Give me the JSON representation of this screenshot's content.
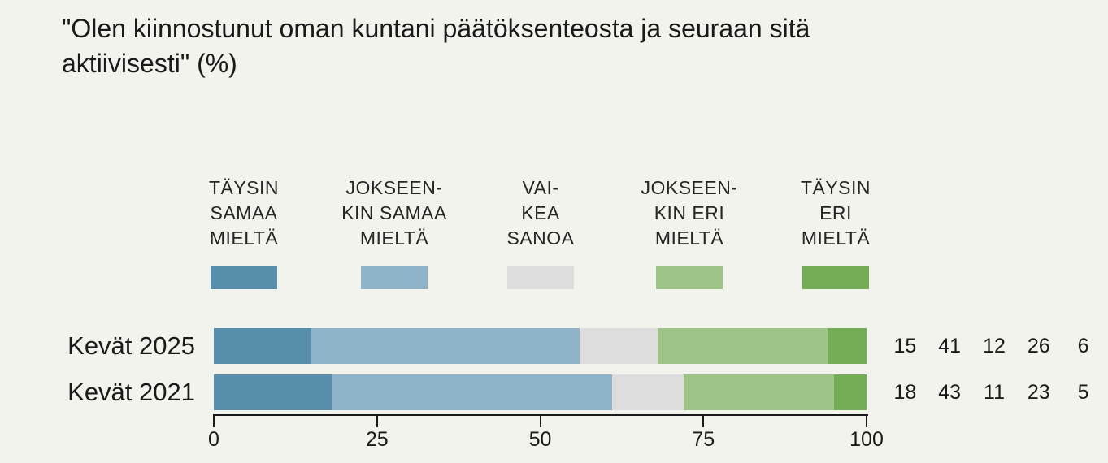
{
  "page": {
    "background_color": "#f2f3ec",
    "text_color": "#1a1a1a"
  },
  "chart_data": {
    "type": "stacked_bar_horizontal",
    "title": "\"Olen kiinnostunut oman kuntani päätöksenteosta ja seuraan sitä\n aktiivisesti\" (%)",
    "unit": "%",
    "legend_position": "top",
    "grid": false,
    "series": [
      {
        "name": "Täysin samaa mieltä",
        "legend_lines": "TÄYSIN\nSAMAA\nMIELTÄ",
        "color": "#578fad"
      },
      {
        "name": "Jokseenkin samaa mieltä",
        "legend_lines": "JOKSEEN-\nKIN SAMAA\nMIELTÄ",
        "color": "#8fb4c9"
      },
      {
        "name": "Vaikea sanoa",
        "legend_lines": "VAI-\nKEA\nSANOA",
        "color": "#dddddd"
      },
      {
        "name": "Jokseenkin eri mieltä",
        "legend_lines": "JOKSEEN-\nKIN ERI\nMIELTÄ",
        "color": "#9ec487"
      },
      {
        "name": "Täysin eri mieltä",
        "legend_lines": "TÄYSIN\nERI\nMIELTÄ",
        "color": "#74ad55"
      }
    ],
    "rows": [
      {
        "label": "Kevät 2025",
        "values": [
          15,
          41,
          12,
          26,
          6
        ]
      },
      {
        "label": "Kevät 2021",
        "values": [
          18,
          43,
          11,
          23,
          5
        ]
      }
    ],
    "x_axis": {
      "min": 0,
      "max": 100,
      "ticks": [
        0,
        25,
        50,
        75,
        100
      ]
    },
    "value_labels_shown": true
  }
}
